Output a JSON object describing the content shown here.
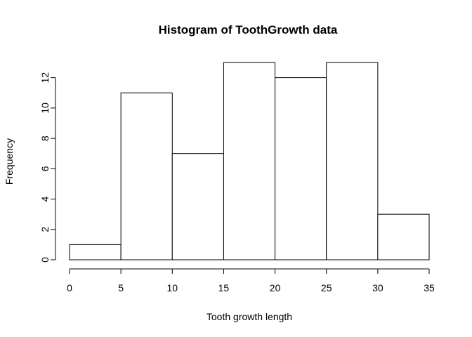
{
  "chart_data": {
    "type": "bar",
    "subtype": "histogram",
    "title": "Histogram of ToothGrowth data",
    "xlabel": "Tooth growth length",
    "ylabel": "Frequency",
    "bins": [
      {
        "x0": 0,
        "x1": 5,
        "count": 1
      },
      {
        "x0": 5,
        "x1": 10,
        "count": 11
      },
      {
        "x0": 10,
        "x1": 15,
        "count": 7
      },
      {
        "x0": 15,
        "x1": 20,
        "count": 13
      },
      {
        "x0": 20,
        "x1": 25,
        "count": 12
      },
      {
        "x0": 25,
        "x1": 30,
        "count": 13
      },
      {
        "x0": 30,
        "x1": 35,
        "count": 3
      }
    ],
    "xlim": [
      0,
      35
    ],
    "ylim": [
      0,
      13
    ],
    "x_ticks": [
      "0",
      "5",
      "10",
      "15",
      "20",
      "25",
      "30",
      "35"
    ],
    "y_ticks": [
      "0",
      "2",
      "4",
      "6",
      "8",
      "10",
      "12"
    ],
    "grid": false,
    "legend": "none",
    "bar_fill": "#ffffff",
    "bar_stroke": "#000000"
  }
}
